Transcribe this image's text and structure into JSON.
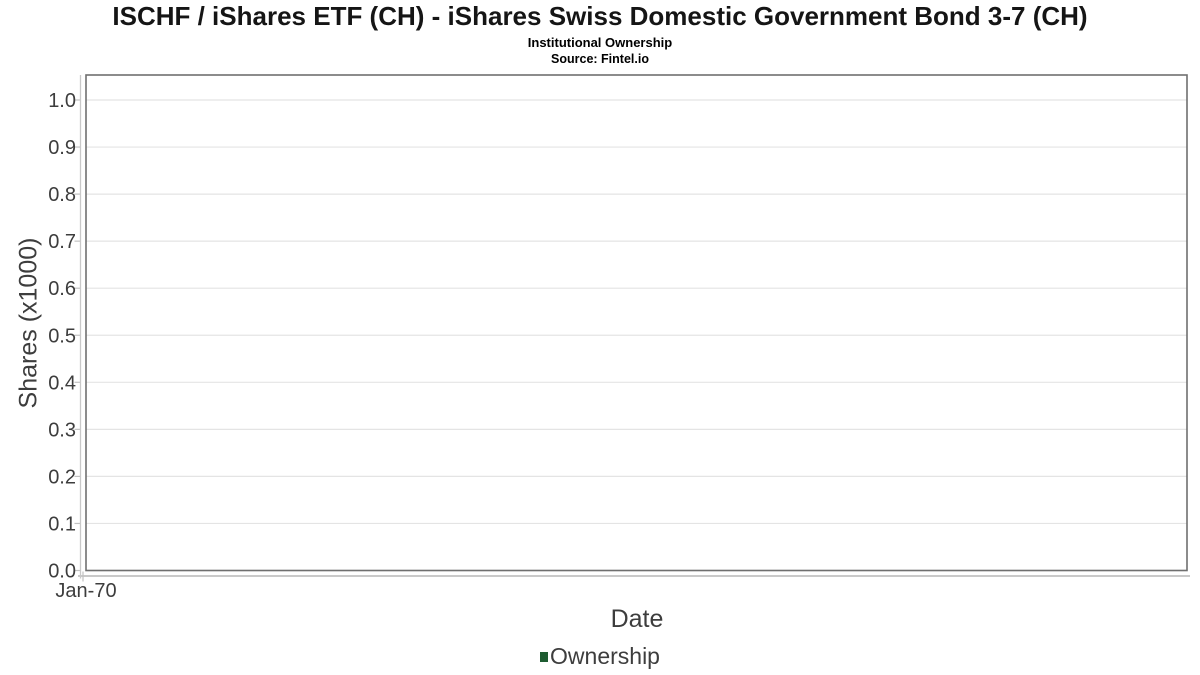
{
  "chart_data": {
    "type": "line",
    "title": "ISCHF / iShares ETF (CH) - iShares Swiss Domestic Government Bond 3-7 (CH)",
    "subtitle": "Institutional Ownership",
    "source": "Source: Fintel.io",
    "xlabel": "Date",
    "ylabel": "Shares (x1000)",
    "x_tick_labels": [
      "Jan-70"
    ],
    "y_tick_labels": [
      "0.0",
      "0.1",
      "0.2",
      "0.3",
      "0.4",
      "0.5",
      "0.6",
      "0.7",
      "0.8",
      "0.9",
      "1.0"
    ],
    "y_tick_values": [
      0,
      0.1,
      0.2,
      0.3,
      0.4,
      0.5,
      0.6,
      0.7,
      0.8,
      0.9,
      1.0
    ],
    "ylim": [
      0,
      1.053
    ],
    "xlim_labels": [
      "Jan-70"
    ],
    "grid": "horizontal-only",
    "legend_position": "bottom-center",
    "series": [
      {
        "name": "Ownership",
        "color": "#1e5c31",
        "x": [],
        "values": []
      }
    ],
    "colors": {
      "background": "#ffffff",
      "plot_border": "#6f6f6f",
      "gridline": "#e4e4e4",
      "axis_line": "#c9c9c9",
      "tick": "#c2c2c2",
      "tick_label": "#3d3d3d",
      "axis_label": "#3d3d3d",
      "title": "#151515",
      "legend_marker": "#1e5c31"
    }
  }
}
